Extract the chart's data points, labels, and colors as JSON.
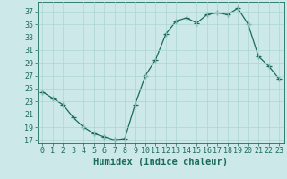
{
  "x": [
    0,
    1,
    2,
    3,
    4,
    5,
    6,
    7,
    8,
    9,
    10,
    11,
    12,
    13,
    14,
    15,
    16,
    17,
    18,
    19,
    20,
    21,
    22,
    23
  ],
  "y": [
    24.5,
    23.5,
    22.5,
    20.5,
    19.0,
    18.0,
    17.5,
    17.0,
    17.2,
    22.5,
    27.0,
    29.5,
    33.5,
    35.5,
    36.0,
    35.2,
    36.5,
    36.8,
    36.5,
    37.5,
    35.0,
    30.0,
    28.5,
    26.5
  ],
  "line_color": "#1a6b5a",
  "marker": "+",
  "marker_color": "#1a6b5a",
  "bg_color": "#cce8e8",
  "grid_color": "#aad4d4",
  "xlabel": "Humidex (Indice chaleur)",
  "ylim": [
    16.5,
    38.5
  ],
  "xlim": [
    -0.5,
    23.5
  ],
  "yticks": [
    17,
    19,
    21,
    23,
    25,
    27,
    29,
    31,
    33,
    35,
    37
  ],
  "xticks": [
    0,
    1,
    2,
    3,
    4,
    5,
    6,
    7,
    8,
    9,
    10,
    11,
    12,
    13,
    14,
    15,
    16,
    17,
    18,
    19,
    20,
    21,
    22,
    23
  ],
  "tick_color": "#1a6b5a",
  "label_color": "#1a6b5a",
  "font_size": 6.0,
  "xlabel_fontsize": 7.5,
  "linewidth": 0.9,
  "markersize": 4.0
}
